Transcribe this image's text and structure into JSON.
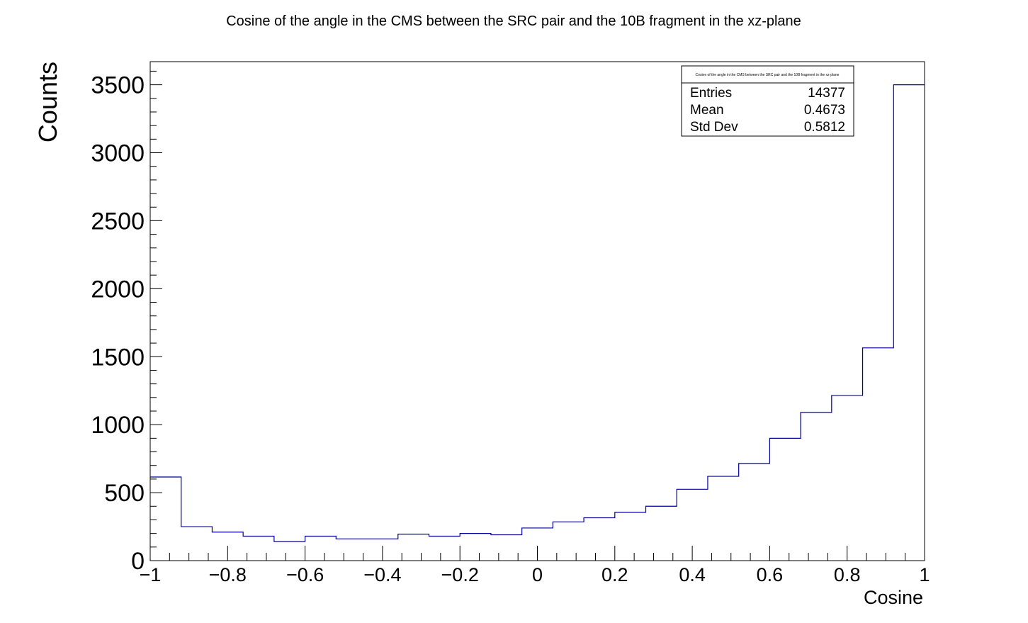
{
  "chart_data": {
    "type": "bar",
    "histogram": true,
    "title": "Cosine of the angle in the CMS between the SRC pair and the 10B fragment  in the xz-plane",
    "xlabel": "Cosine",
    "ylabel": "Counts",
    "xlim": [
      -1,
      1
    ],
    "ylim": [
      0,
      3670
    ],
    "bin_edges": [
      -1.0,
      -0.92,
      -0.84,
      -0.76,
      -0.68,
      -0.6,
      -0.52,
      -0.44,
      -0.36,
      -0.28,
      -0.2,
      -0.12,
      -0.04,
      0.04,
      0.12,
      0.2,
      0.28,
      0.36,
      0.44,
      0.52,
      0.6,
      0.68,
      0.76,
      0.84,
      0.92,
      1.0
    ],
    "values": [
      615,
      250,
      210,
      180,
      140,
      180,
      160,
      160,
      195,
      180,
      200,
      190,
      240,
      285,
      315,
      355,
      400,
      525,
      620,
      715,
      900,
      1090,
      1215,
      1565,
      3500
    ],
    "x_ticks": [
      {
        "value": -1,
        "label": "−1"
      },
      {
        "value": -0.8,
        "label": "−0.8"
      },
      {
        "value": -0.6,
        "label": "−0.6"
      },
      {
        "value": -0.4,
        "label": "−0.4"
      },
      {
        "value": -0.2,
        "label": "−0.2"
      },
      {
        "value": 0,
        "label": "0"
      },
      {
        "value": 0.2,
        "label": "0.2"
      },
      {
        "value": 0.4,
        "label": "0.4"
      },
      {
        "value": 0.6,
        "label": "0.6"
      },
      {
        "value": 0.8,
        "label": "0.8"
      },
      {
        "value": 1,
        "label": "1"
      }
    ],
    "y_ticks": [
      {
        "value": 0,
        "label": "0"
      },
      {
        "value": 500,
        "label": "500"
      },
      {
        "value": 1000,
        "label": "1000"
      },
      {
        "value": 1500,
        "label": "1500"
      },
      {
        "value": 2000,
        "label": "2000"
      },
      {
        "value": 2500,
        "label": "2500"
      },
      {
        "value": 3000,
        "label": "3000"
      },
      {
        "value": 3500,
        "label": "3500"
      }
    ],
    "line_color": "#000099",
    "grid": false,
    "stats_box": {
      "title": "Cosine of the angle in the CMS between the SRC pair and the 10B fragment  in the xz-plane",
      "rows": [
        {
          "label": "Entries",
          "value": "14377"
        },
        {
          "label": "Mean",
          "value": "0.4673"
        },
        {
          "label": "Std Dev",
          "value": "0.5812"
        }
      ]
    }
  }
}
